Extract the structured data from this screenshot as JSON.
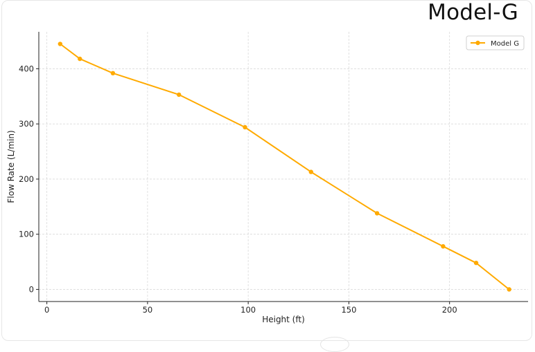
{
  "header": {
    "brand_title": "Model-G"
  },
  "chart_data": {
    "type": "line",
    "title": "",
    "xlabel": "Height (ft)",
    "ylabel": "Flow Rate (L/min)",
    "xlim": [
      -4,
      239
    ],
    "ylim": [
      -22,
      467
    ],
    "x_ticks": [
      0,
      50,
      100,
      150,
      200
    ],
    "y_ticks": [
      0,
      100,
      200,
      300,
      400
    ],
    "grid": true,
    "legend_position": "top-right",
    "series": [
      {
        "name": "Model G",
        "color": "#FFAA00",
        "x": [
          6.6,
          16.4,
          32.8,
          65.6,
          98.4,
          131.2,
          164.0,
          196.8,
          213.2,
          229.6
        ],
        "y": [
          445,
          418,
          392,
          353,
          294,
          213,
          138,
          78,
          48,
          0
        ]
      }
    ]
  }
}
